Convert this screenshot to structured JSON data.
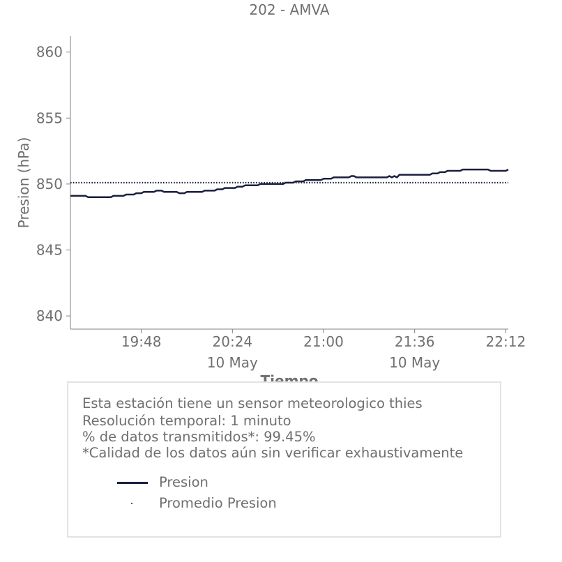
{
  "chart_data": {
    "type": "line",
    "title": "202 - AMVA",
    "xlabel": "Tiempo",
    "ylabel": "Presion (hPa)",
    "ylim": [
      839,
      861.2
    ],
    "xlim": [
      "19:20",
      "22:13"
    ],
    "y_ticks": [
      840,
      845,
      850,
      855,
      860
    ],
    "x_ticks": [
      {
        "value": "19:48",
        "label": "19:48",
        "sublabel": ""
      },
      {
        "value": "20:24",
        "label": "20:24",
        "sublabel": "10 May"
      },
      {
        "value": "21:00",
        "label": "21:00",
        "sublabel": ""
      },
      {
        "value": "21:36",
        "label": "21:36",
        "sublabel": "10 May"
      },
      {
        "value": "22:12",
        "label": "22:12",
        "sublabel": ""
      }
    ],
    "series": [
      {
        "name": "Presion",
        "style": "line",
        "color": "#1b1f3f",
        "x": [
          "19:20",
          "19:26",
          "19:27",
          "19:36",
          "19:37",
          "19:41",
          "19:42",
          "19:45",
          "19:46",
          "19:48",
          "19:49",
          "19:53",
          "19:54",
          "19:56",
          "19:57",
          "20:02",
          "20:03",
          "20:05",
          "20:06",
          "20:12",
          "20:13",
          "20:17",
          "20:18",
          "20:20",
          "20:21",
          "20:25",
          "20:26",
          "20:28",
          "20:29",
          "20:34",
          "20:35",
          "20:38",
          "20:39",
          "20:44",
          "20:45",
          "20:48",
          "20:49",
          "20:52",
          "20:53",
          "20:59",
          "21:00",
          "21:03",
          "21:04",
          "21:10",
          "21:11",
          "21:12",
          "21:13",
          "21:25",
          "21:26",
          "21:27",
          "21:28",
          "21:29",
          "21:30",
          "21:42",
          "21:43",
          "21:45",
          "21:46",
          "21:48",
          "21:49",
          "21:54",
          "21:55",
          "22:05",
          "22:06",
          "22:12",
          "22:13"
        ],
        "values": [
          849.1,
          849.1,
          849.0,
          849.0,
          849.1,
          849.1,
          849.2,
          849.2,
          849.3,
          849.3,
          849.4,
          849.4,
          849.5,
          849.5,
          849.4,
          849.4,
          849.3,
          849.3,
          849.4,
          849.4,
          849.5,
          849.5,
          849.6,
          849.6,
          849.7,
          849.7,
          849.8,
          849.8,
          849.9,
          849.9,
          850.0,
          850.0,
          850.0,
          850.0,
          850.1,
          850.1,
          850.2,
          850.2,
          850.3,
          850.3,
          850.4,
          850.4,
          850.5,
          850.5,
          850.6,
          850.6,
          850.5,
          850.5,
          850.6,
          850.5,
          850.6,
          850.5,
          850.7,
          850.7,
          850.8,
          850.8,
          850.9,
          850.9,
          851.0,
          851.0,
          851.1,
          851.1,
          851.0,
          851.0,
          851.1
        ]
      },
      {
        "name": "Promedio Presion",
        "style": "dotted",
        "color": "#1b1f3f",
        "x": [
          "19:20",
          "22:13"
        ],
        "values": [
          850.1,
          850.1
        ]
      }
    ],
    "grid": false,
    "legend_placement": "bottom"
  },
  "info": {
    "line1": "Esta estación tiene un sensor meteorologico thies",
    "line2": "Resolución temporal: 1 minuto",
    "line3": "% de datos transmitidos*: 99.45%",
    "line4": "*Calidad de los datos aún sin verificar exhaustivamente"
  },
  "legend": {
    "item1": "Presion",
    "item2": "Promedio Presion"
  },
  "colors": {
    "series": "#1b1f3f",
    "axis": "#808080",
    "text": "#6f6f6f",
    "box_border": "#e3e3e3"
  }
}
